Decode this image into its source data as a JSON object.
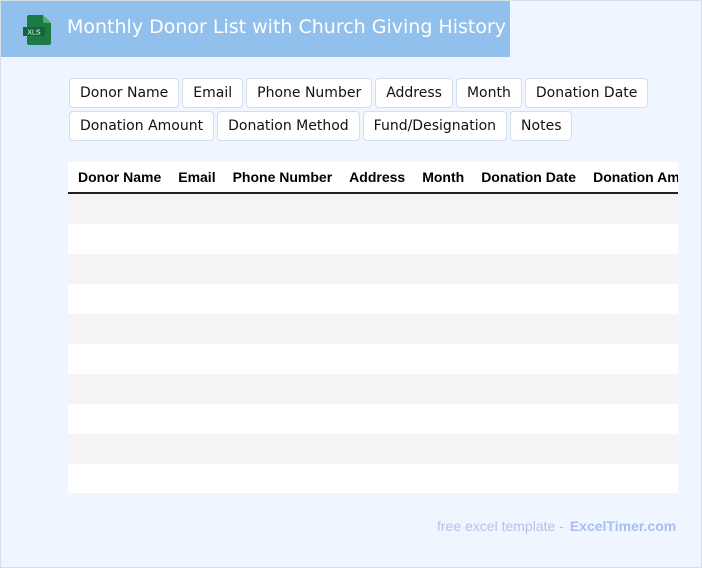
{
  "header": {
    "title": "Monthly Donor List with Church Giving History",
    "icon": "xls-file-icon",
    "icon_label": "XLS",
    "banner_color": "#91c0ec"
  },
  "columns": [
    "Donor Name",
    "Email",
    "Phone Number",
    "Address",
    "Month",
    "Donation Date",
    "Donation Amount",
    "Donation Method",
    "Fund/Designation",
    "Notes"
  ],
  "rows": 10,
  "footer": {
    "text": "free excel template -",
    "brand": "ExcelTimer.com"
  }
}
